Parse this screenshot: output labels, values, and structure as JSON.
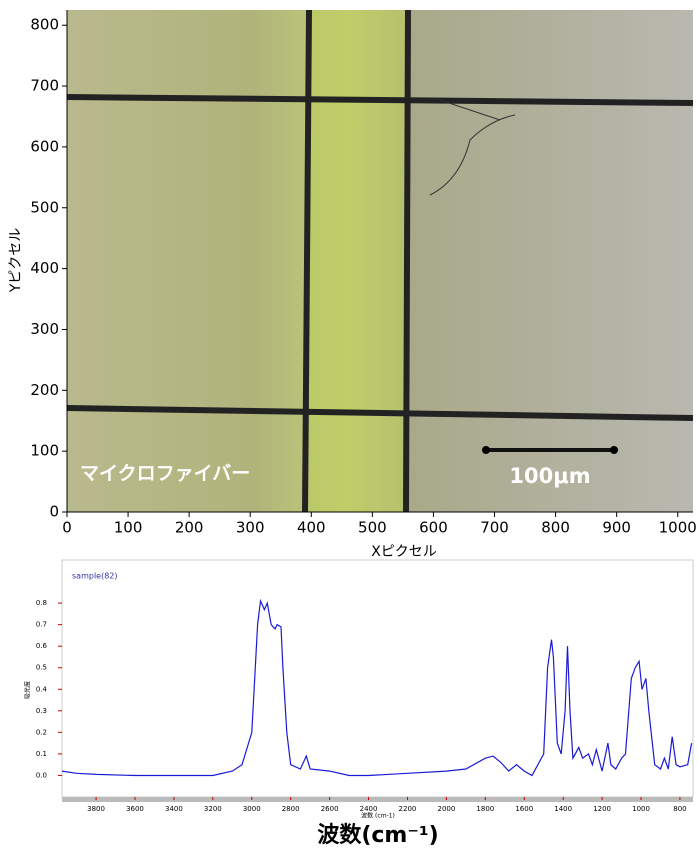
{
  "chart_data": [
    {
      "type": "image",
      "xlabel": "Xピクセル",
      "ylabel": "Yピクセル",
      "xlim": [
        0,
        1025
      ],
      "ylim": [
        0,
        825
      ],
      "xticks": [
        0,
        100,
        200,
        300,
        400,
        500,
        600,
        700,
        800,
        900,
        1000
      ],
      "yticks": [
        0,
        100,
        200,
        300,
        400,
        500,
        600,
        700,
        800
      ],
      "annotations": [
        "マイクロファイバー",
        "100μm"
      ]
    },
    {
      "type": "line",
      "title": "波数(cm⁻¹)",
      "xlabel": "波数 (cm-1)",
      "ylabel": "吸光度",
      "xlim": [
        3975,
        733
      ],
      "ylim": [
        -0.1,
        1.0
      ],
      "xticks": [
        3800,
        3600,
        3400,
        3200,
        3000,
        2800,
        2600,
        2400,
        2200,
        2000,
        1800,
        1600,
        1400,
        1200,
        1000,
        800
      ],
      "yticks": [
        {
          "value": 0,
          "label": "0.0"
        },
        0.1,
        0.2,
        0.3,
        0.4,
        0.5,
        0.6,
        0.7,
        0.8
      ],
      "x": [
        3975,
        3900,
        3800,
        3600,
        3400,
        3200,
        3100,
        3050,
        3000,
        2970,
        2955,
        2935,
        2920,
        2900,
        2880,
        2870,
        2850,
        2840,
        2820,
        2800,
        2750,
        2720,
        2700,
        2600,
        2500,
        2400,
        2200,
        2000,
        1900,
        1800,
        1760,
        1720,
        1680,
        1640,
        1600,
        1560,
        1500,
        1480,
        1460,
        1450,
        1430,
        1410,
        1390,
        1378,
        1365,
        1350,
        1320,
        1300,
        1270,
        1250,
        1230,
        1200,
        1170,
        1155,
        1130,
        1100,
        1080,
        1050,
        1030,
        1010,
        995,
        975,
        960,
        930,
        900,
        880,
        860,
        840,
        820,
        800,
        760,
        740
      ],
      "series": [
        {
          "name": "sample(82)",
          "color": "#1a1ad6",
          "values": [
            0.02,
            0.01,
            0.005,
            0,
            0,
            0,
            0.02,
            0.05,
            0.2,
            0.7,
            0.81,
            0.77,
            0.8,
            0.7,
            0.68,
            0.7,
            0.69,
            0.5,
            0.2,
            0.05,
            0.03,
            0.09,
            0.03,
            0.02,
            0,
            0,
            0.01,
            0.02,
            0.03,
            0.08,
            0.09,
            0.06,
            0.02,
            0.05,
            0.02,
            0,
            0.1,
            0.5,
            0.63,
            0.55,
            0.15,
            0.1,
            0.3,
            0.6,
            0.3,
            0.08,
            0.13,
            0.08,
            0.1,
            0.05,
            0.12,
            0.02,
            0.15,
            0.05,
            0.03,
            0.08,
            0.1,
            0.45,
            0.5,
            0.53,
            0.4,
            0.45,
            0.3,
            0.05,
            0.03,
            0.08,
            0.03,
            0.18,
            0.05,
            0.04,
            0.05,
            0.15
          ]
        }
      ]
    }
  ]
}
